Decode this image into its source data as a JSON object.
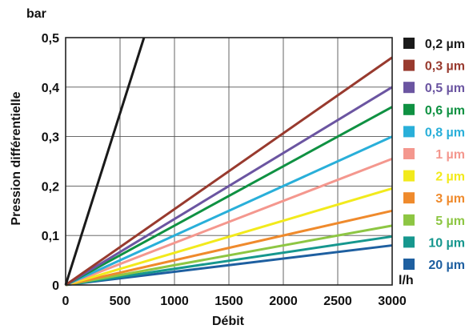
{
  "chart_data": {
    "type": "line",
    "title": "",
    "ylabel": "Pression différentielle",
    "xlabel": "Débit",
    "y_unit": "bar",
    "x_unit": "l/h",
    "xlim": [
      0,
      3000
    ],
    "ylim": [
      0,
      0.5
    ],
    "x_ticks": [
      "0",
      "500",
      "1000",
      "1500",
      "2000",
      "2500",
      "3000"
    ],
    "y_ticks": [
      "0",
      "0,1",
      "0,2",
      "0,3",
      "0,4",
      "0,5"
    ],
    "grid": true,
    "legend_position": "right",
    "series": [
      {
        "name": "0,2 µm",
        "color": "#1a1a1a",
        "x": [
          0,
          720
        ],
        "y": [
          0,
          0.5
        ]
      },
      {
        "name": "0,3 µm",
        "color": "#983a2e",
        "x": [
          0,
          3000
        ],
        "y": [
          0,
          0.46
        ]
      },
      {
        "name": "0,5 µm",
        "color": "#6b55a1",
        "x": [
          0,
          3000
        ],
        "y": [
          0,
          0.4
        ]
      },
      {
        "name": "0,6 µm",
        "color": "#0f9142",
        "x": [
          0,
          3000
        ],
        "y": [
          0,
          0.36
        ]
      },
      {
        "name": "0,8 µm",
        "color": "#29afd9",
        "x": [
          0,
          3000
        ],
        "y": [
          0,
          0.3
        ]
      },
      {
        "name": "1 µm",
        "color": "#f4978e",
        "x": [
          0,
          3000
        ],
        "y": [
          0,
          0.255
        ]
      },
      {
        "name": "2 µm",
        "color": "#f2ea1c",
        "x": [
          0,
          3000
        ],
        "y": [
          0,
          0.195
        ]
      },
      {
        "name": "3 µm",
        "color": "#ef8a2c",
        "x": [
          0,
          3000
        ],
        "y": [
          0,
          0.15
        ]
      },
      {
        "name": "5 µm",
        "color": "#8dc643",
        "x": [
          0,
          3000
        ],
        "y": [
          0,
          0.12
        ]
      },
      {
        "name": "10 µm",
        "color": "#16978e",
        "x": [
          0,
          3000
        ],
        "y": [
          0,
          0.098
        ]
      },
      {
        "name": "20 µm",
        "color": "#1e5fa0",
        "x": [
          0,
          3000
        ],
        "y": [
          0,
          0.08
        ]
      }
    ]
  }
}
